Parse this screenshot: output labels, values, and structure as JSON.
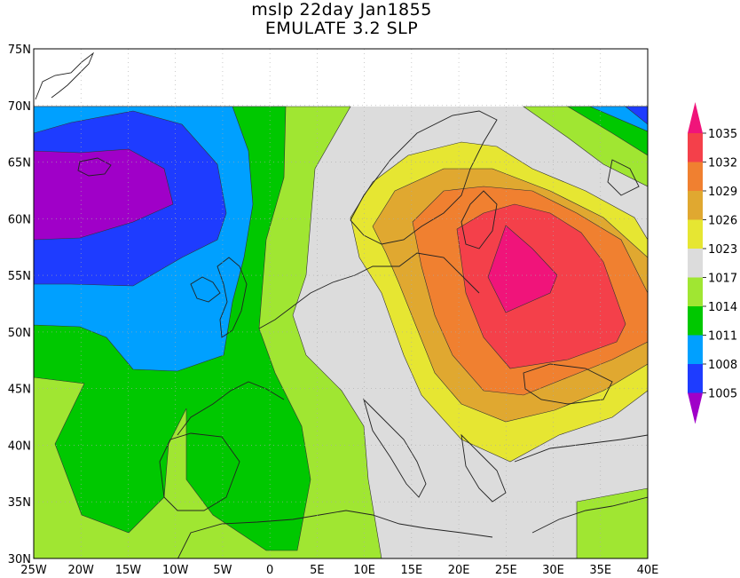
{
  "title": {
    "line1": "mslp 22day Jan1855",
    "line2": "EMULATE 3.2 SLP"
  },
  "axes": {
    "y_labels": [
      "75N",
      "70N",
      "65N",
      "60N",
      "55N",
      "50N",
      "45N",
      "40N",
      "35N",
      "30N"
    ],
    "x_labels": [
      "25W",
      "20W",
      "15W",
      "10W",
      "5W",
      "0",
      "5E",
      "10E",
      "15E",
      "20E",
      "25E",
      "30E",
      "35E",
      "40E"
    ]
  },
  "colorbar": {
    "labels": [
      "1035",
      "1032",
      "1029",
      "1026",
      "1023",
      "1017",
      "1014",
      "1011",
      "1008",
      "1005"
    ],
    "colors": [
      "#f0147a",
      "#f4404a",
      "#f08030",
      "#e0a830",
      "#e6e632",
      "#dcdcdc",
      "#a0e632",
      "#00c800",
      "#00a0ff",
      "#1e3cff",
      "#a000c8"
    ]
  },
  "map": {
    "projection": "lat-lon",
    "lon_range": [
      "25W",
      "40E"
    ],
    "lat_range": [
      "30N",
      "75N"
    ],
    "data_lat_max": "70N"
  }
}
